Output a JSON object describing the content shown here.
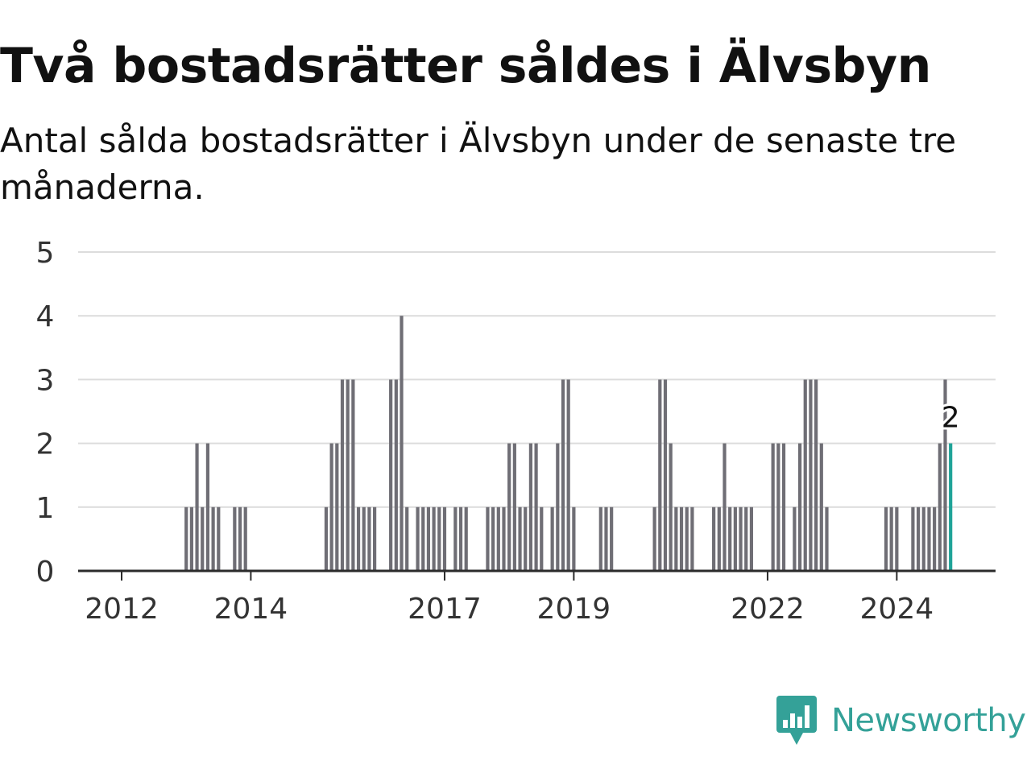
{
  "title": "Två bostadsrätter såldes i Älvsbyn",
  "subtitle": "Antal sålda bostadsrätter i Älvsbyn under de senaste tre månaderna.",
  "brand": {
    "name": "Newsworthy",
    "color": "#34a198"
  },
  "colors": {
    "bar": "#6f6e75",
    "highlight": "#1fa398",
    "grid": "#dcdcdc",
    "axis": "#2b2b2b"
  },
  "chart_data": {
    "type": "bar",
    "x_unit": "month",
    "x_start": "2011-07",
    "x_end": "2025-01",
    "ylim": [
      0,
      5
    ],
    "y_ticks": [
      "0",
      "1",
      "2",
      "3",
      "4",
      "5"
    ],
    "x_ticks": [
      {
        "label": "2012",
        "date": "2012-01"
      },
      {
        "label": "2014",
        "date": "2014-01"
      },
      {
        "label": "2017",
        "date": "2017-01"
      },
      {
        "label": "2019",
        "date": "2019-01"
      },
      {
        "label": "2022",
        "date": "2022-01"
      },
      {
        "label": "2024",
        "date": "2024-01"
      }
    ],
    "grid": true,
    "legend": "none",
    "series": [
      {
        "values": [
          {
            "date": "2012-09",
            "value": 0
          },
          {
            "date": "2012-10",
            "value": 0
          },
          {
            "date": "2012-11",
            "value": 0
          },
          {
            "date": "2012-12",
            "value": 0
          },
          {
            "date": "2013-01",
            "value": 1
          },
          {
            "date": "2013-02",
            "value": 1
          },
          {
            "date": "2013-03",
            "value": 2
          },
          {
            "date": "2013-04",
            "value": 1
          },
          {
            "date": "2013-05",
            "value": 2
          },
          {
            "date": "2013-06",
            "value": 1
          },
          {
            "date": "2013-07",
            "value": 1
          },
          {
            "date": "2013-08",
            "value": 0
          },
          {
            "date": "2013-09",
            "value": 0
          },
          {
            "date": "2013-10",
            "value": 1
          },
          {
            "date": "2013-11",
            "value": 1
          },
          {
            "date": "2013-12",
            "value": 1
          },
          {
            "date": "2014-01",
            "value": 0
          },
          {
            "date": "2014-02",
            "value": 0
          },
          {
            "date": "2014-03",
            "value": 0
          },
          {
            "date": "2014-04",
            "value": 0
          },
          {
            "date": "2014-05",
            "value": 0
          },
          {
            "date": "2014-06",
            "value": 0
          },
          {
            "date": "2014-07",
            "value": 0
          },
          {
            "date": "2014-08",
            "value": 0
          },
          {
            "date": "2014-09",
            "value": 0
          },
          {
            "date": "2014-10",
            "value": 0
          },
          {
            "date": "2014-11",
            "value": 0
          },
          {
            "date": "2014-12",
            "value": 0
          },
          {
            "date": "2015-01",
            "value": 0
          },
          {
            "date": "2015-02",
            "value": 0
          },
          {
            "date": "2015-03",
            "value": 1
          },
          {
            "date": "2015-04",
            "value": 2
          },
          {
            "date": "2015-05",
            "value": 2
          },
          {
            "date": "2015-06",
            "value": 3
          },
          {
            "date": "2015-07",
            "value": 3
          },
          {
            "date": "2015-08",
            "value": 3
          },
          {
            "date": "2015-09",
            "value": 1
          },
          {
            "date": "2015-10",
            "value": 1
          },
          {
            "date": "2015-11",
            "value": 1
          },
          {
            "date": "2015-12",
            "value": 1
          },
          {
            "date": "2016-01",
            "value": 0
          },
          {
            "date": "2016-02",
            "value": 0
          },
          {
            "date": "2016-03",
            "value": 3
          },
          {
            "date": "2016-04",
            "value": 3
          },
          {
            "date": "2016-05",
            "value": 4
          },
          {
            "date": "2016-06",
            "value": 1
          },
          {
            "date": "2016-07",
            "value": 0
          },
          {
            "date": "2016-08",
            "value": 1
          },
          {
            "date": "2016-09",
            "value": 1
          },
          {
            "date": "2016-10",
            "value": 1
          },
          {
            "date": "2016-11",
            "value": 1
          },
          {
            "date": "2016-12",
            "value": 1
          },
          {
            "date": "2017-01",
            "value": 1
          },
          {
            "date": "2017-02",
            "value": 0
          },
          {
            "date": "2017-03",
            "value": 1
          },
          {
            "date": "2017-04",
            "value": 1
          },
          {
            "date": "2017-05",
            "value": 1
          },
          {
            "date": "2017-06",
            "value": 0
          },
          {
            "date": "2017-07",
            "value": 0
          },
          {
            "date": "2017-08",
            "value": 0
          },
          {
            "date": "2017-09",
            "value": 1
          },
          {
            "date": "2017-10",
            "value": 1
          },
          {
            "date": "2017-11",
            "value": 1
          },
          {
            "date": "2017-12",
            "value": 1
          },
          {
            "date": "2018-01",
            "value": 2
          },
          {
            "date": "2018-02",
            "value": 2
          },
          {
            "date": "2018-03",
            "value": 1
          },
          {
            "date": "2018-04",
            "value": 1
          },
          {
            "date": "2018-05",
            "value": 2
          },
          {
            "date": "2018-06",
            "value": 2
          },
          {
            "date": "2018-07",
            "value": 1
          },
          {
            "date": "2018-08",
            "value": 0
          },
          {
            "date": "2018-09",
            "value": 1
          },
          {
            "date": "2018-10",
            "value": 2
          },
          {
            "date": "2018-11",
            "value": 3
          },
          {
            "date": "2018-12",
            "value": 3
          },
          {
            "date": "2019-01",
            "value": 1
          },
          {
            "date": "2019-02",
            "value": 0
          },
          {
            "date": "2019-03",
            "value": 0
          },
          {
            "date": "2019-04",
            "value": 0
          },
          {
            "date": "2019-05",
            "value": 0
          },
          {
            "date": "2019-06",
            "value": 1
          },
          {
            "date": "2019-07",
            "value": 1
          },
          {
            "date": "2019-08",
            "value": 1
          },
          {
            "date": "2019-09",
            "value": 0
          },
          {
            "date": "2019-10",
            "value": 0
          },
          {
            "date": "2019-11",
            "value": 0
          },
          {
            "date": "2019-12",
            "value": 0
          },
          {
            "date": "2020-01",
            "value": 0
          },
          {
            "date": "2020-02",
            "value": 0
          },
          {
            "date": "2020-03",
            "value": 0
          },
          {
            "date": "2020-04",
            "value": 1
          },
          {
            "date": "2020-05",
            "value": 3
          },
          {
            "date": "2020-06",
            "value": 3
          },
          {
            "date": "2020-07",
            "value": 2
          },
          {
            "date": "2020-08",
            "value": 1
          },
          {
            "date": "2020-09",
            "value": 1
          },
          {
            "date": "2020-10",
            "value": 1
          },
          {
            "date": "2020-11",
            "value": 1
          },
          {
            "date": "2020-12",
            "value": 0
          },
          {
            "date": "2021-01",
            "value": 0
          },
          {
            "date": "2021-02",
            "value": 0
          },
          {
            "date": "2021-03",
            "value": 1
          },
          {
            "date": "2021-04",
            "value": 1
          },
          {
            "date": "2021-05",
            "value": 2
          },
          {
            "date": "2021-06",
            "value": 1
          },
          {
            "date": "2021-07",
            "value": 1
          },
          {
            "date": "2021-08",
            "value": 1
          },
          {
            "date": "2021-09",
            "value": 1
          },
          {
            "date": "2021-10",
            "value": 1
          },
          {
            "date": "2021-11",
            "value": 0
          },
          {
            "date": "2021-12",
            "value": 0
          },
          {
            "date": "2022-01",
            "value": 0
          },
          {
            "date": "2022-02",
            "value": 2
          },
          {
            "date": "2022-03",
            "value": 2
          },
          {
            "date": "2022-04",
            "value": 2
          },
          {
            "date": "2022-05",
            "value": 0
          },
          {
            "date": "2022-06",
            "value": 1
          },
          {
            "date": "2022-07",
            "value": 2
          },
          {
            "date": "2022-08",
            "value": 3
          },
          {
            "date": "2022-09",
            "value": 3
          },
          {
            "date": "2022-10",
            "value": 3
          },
          {
            "date": "2022-11",
            "value": 2
          },
          {
            "date": "2022-12",
            "value": 1
          },
          {
            "date": "2023-01",
            "value": 0
          },
          {
            "date": "2023-02",
            "value": 0
          },
          {
            "date": "2023-03",
            "value": 0
          },
          {
            "date": "2023-04",
            "value": 0
          },
          {
            "date": "2023-05",
            "value": 0
          },
          {
            "date": "2023-06",
            "value": 0
          },
          {
            "date": "2023-07",
            "value": 0
          },
          {
            "date": "2023-08",
            "value": 0
          },
          {
            "date": "2023-09",
            "value": 0
          },
          {
            "date": "2023-10",
            "value": 0
          },
          {
            "date": "2023-11",
            "value": 1
          },
          {
            "date": "2023-12",
            "value": 1
          },
          {
            "date": "2024-01",
            "value": 1
          },
          {
            "date": "2024-02",
            "value": 0
          },
          {
            "date": "2024-03",
            "value": 0
          },
          {
            "date": "2024-04",
            "value": 1
          },
          {
            "date": "2024-05",
            "value": 1
          },
          {
            "date": "2024-06",
            "value": 1
          },
          {
            "date": "2024-07",
            "value": 1
          },
          {
            "date": "2024-08",
            "value": 1
          },
          {
            "date": "2024-09",
            "value": 2
          },
          {
            "date": "2024-10",
            "value": 3
          },
          {
            "date": "2024-11",
            "value": 2
          }
        ]
      }
    ],
    "highlight": {
      "date": "2024-11",
      "value": 2,
      "label": "2"
    }
  }
}
